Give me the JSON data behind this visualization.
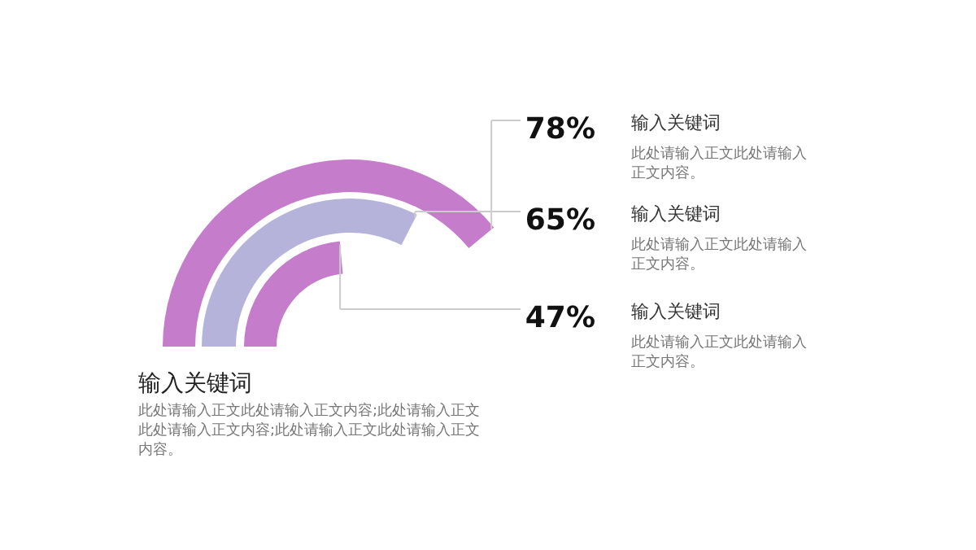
{
  "chart_data": {
    "type": "other",
    "title": "输入关键词",
    "subtitle": "此处请输入正文此处请输入正文内容;此处请输入正文此处请输入正文内容;此处请输入正文此处请输入正文内容。",
    "categories": [
      null,
      null,
      null
    ],
    "values": [
      78,
      65,
      47
    ],
    "value_labels": [
      "78%",
      "65%",
      "47%"
    ],
    "colors": [
      "#c57ccb",
      "#b6b3da",
      "#c57ccb"
    ],
    "annotations": [
      "输入关键词",
      "此处请输入正文此处请输入正文内容。",
      "输入关键词",
      "此处请输入正文此处请输入正文内容。",
      "输入关键词",
      "此处请输入正文此处请输入正文内容。"
    ]
  }
}
